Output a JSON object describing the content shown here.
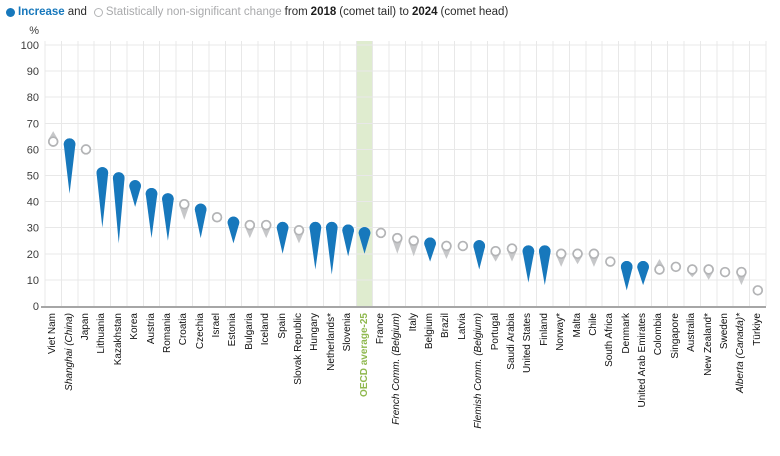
{
  "legend": {
    "increase_label": "Increase",
    "and_text": "and",
    "nonsig_label": "Statistically non-significant change",
    "from_text": "from",
    "year_start": "2018",
    "tail_text": "(comet tail) to",
    "year_end": "2024",
    "head_text": "(comet head)"
  },
  "axis": {
    "unit": "%",
    "ticks": [
      0,
      10,
      20,
      30,
      40,
      50,
      60,
      70,
      80,
      90,
      100
    ]
  },
  "colors": {
    "blue": "#1778bc",
    "gray_fill": "#c6c7c9",
    "gray_stroke": "#b3b4b6",
    "band": "#dfeccf",
    "green_label": "#8fb84e",
    "grid": "#e8e8e8",
    "axis_line": "#a6a6a6",
    "tick_text": "#3c3c3c"
  },
  "chart_data": {
    "type": "comet",
    "title": "Increase and statistically non-significant change from 2018 (comet tail) to 2024 (comet head)",
    "ylabel": "%",
    "ylim": [
      0,
      100
    ],
    "grid": true,
    "legend_position": "top-left",
    "points": [
      {
        "label": "Viet Nam",
        "value_2024": 63,
        "value_2018": 67,
        "significant": false,
        "italic": false,
        "highlight": false
      },
      {
        "label": "Shanghai (China)",
        "value_2024": 62,
        "value_2018": 43,
        "significant": true,
        "italic": true,
        "highlight": false
      },
      {
        "label": "Japan",
        "value_2024": 60,
        "value_2018": 62,
        "significant": false,
        "italic": false,
        "highlight": false
      },
      {
        "label": "Lithuania",
        "value_2024": 51,
        "value_2018": 30,
        "significant": true,
        "italic": false,
        "highlight": false
      },
      {
        "label": "Kazakhstan",
        "value_2024": 49,
        "value_2018": 24,
        "significant": true,
        "italic": false,
        "highlight": false
      },
      {
        "label": "Korea",
        "value_2024": 46,
        "value_2018": 38,
        "significant": true,
        "italic": false,
        "highlight": false
      },
      {
        "label": "Austria",
        "value_2024": 43,
        "value_2018": 26,
        "significant": true,
        "italic": false,
        "highlight": false
      },
      {
        "label": "Romania",
        "value_2024": 41,
        "value_2018": 25,
        "significant": true,
        "italic": false,
        "highlight": false
      },
      {
        "label": "Croatia",
        "value_2024": 39,
        "value_2018": 33,
        "significant": false,
        "italic": false,
        "highlight": false
      },
      {
        "label": "Czechia",
        "value_2024": 37,
        "value_2018": 26,
        "significant": true,
        "italic": false,
        "highlight": false
      },
      {
        "label": "Israel",
        "value_2024": 34,
        "value_2018": 34,
        "significant": false,
        "italic": false,
        "highlight": false
      },
      {
        "label": "Estonia",
        "value_2024": 32,
        "value_2018": 24,
        "significant": true,
        "italic": false,
        "highlight": false
      },
      {
        "label": "Bulgaria",
        "value_2024": 31,
        "value_2018": 26,
        "significant": false,
        "italic": false,
        "highlight": false
      },
      {
        "label": "Iceland",
        "value_2024": 31,
        "value_2018": 26,
        "significant": false,
        "italic": false,
        "highlight": false
      },
      {
        "label": "Spain",
        "value_2024": 30,
        "value_2018": 20,
        "significant": true,
        "italic": false,
        "highlight": false
      },
      {
        "label": "Slovak Republic",
        "value_2024": 29,
        "value_2018": 24,
        "significant": false,
        "italic": false,
        "highlight": false
      },
      {
        "label": "Hungary",
        "value_2024": 30,
        "value_2018": 14,
        "significant": true,
        "italic": false,
        "highlight": false
      },
      {
        "label": "Netherlands*",
        "value_2024": 30,
        "value_2018": 12,
        "significant": true,
        "italic": false,
        "highlight": false
      },
      {
        "label": "Slovenia",
        "value_2024": 29,
        "value_2018": 19,
        "significant": true,
        "italic": false,
        "highlight": false
      },
      {
        "label": "OECD average-25",
        "value_2024": 28,
        "value_2018": 20,
        "significant": true,
        "italic": false,
        "highlight": true
      },
      {
        "label": "France",
        "value_2024": 28,
        "value_2018": 28,
        "significant": false,
        "italic": false,
        "highlight": false
      },
      {
        "label": "French Comm. (Belgium)",
        "value_2024": 26,
        "value_2018": 20,
        "significant": false,
        "italic": true,
        "highlight": false
      },
      {
        "label": "Italy",
        "value_2024": 25,
        "value_2018": 19,
        "significant": false,
        "italic": false,
        "highlight": false
      },
      {
        "label": "Belgium",
        "value_2024": 24,
        "value_2018": 17,
        "significant": true,
        "italic": false,
        "highlight": false
      },
      {
        "label": "Brazil",
        "value_2024": 23,
        "value_2018": 18,
        "significant": false,
        "italic": false,
        "highlight": false
      },
      {
        "label": "Latvia",
        "value_2024": 23,
        "value_2018": 23,
        "significant": false,
        "italic": false,
        "highlight": false
      },
      {
        "label": "Flemish Comm. (Belgium)",
        "value_2024": 23,
        "value_2018": 14,
        "significant": true,
        "italic": true,
        "highlight": false
      },
      {
        "label": "Portugal",
        "value_2024": 21,
        "value_2018": 17,
        "significant": false,
        "italic": false,
        "highlight": false
      },
      {
        "label": "Saudi Arabia",
        "value_2024": 22,
        "value_2018": 17,
        "significant": false,
        "italic": false,
        "highlight": false
      },
      {
        "label": "United States",
        "value_2024": 21,
        "value_2018": 9,
        "significant": true,
        "italic": false,
        "highlight": false
      },
      {
        "label": "Finland",
        "value_2024": 21,
        "value_2018": 8,
        "significant": true,
        "italic": false,
        "highlight": false
      },
      {
        "label": "Norway*",
        "value_2024": 20,
        "value_2018": 15,
        "significant": false,
        "italic": false,
        "highlight": false
      },
      {
        "label": "Malta",
        "value_2024": 20,
        "value_2018": 16,
        "significant": false,
        "italic": false,
        "highlight": false
      },
      {
        "label": "Chile",
        "value_2024": 20,
        "value_2018": 15,
        "significant": false,
        "italic": false,
        "highlight": false
      },
      {
        "label": "South Africa",
        "value_2024": 17,
        "value_2018": 17,
        "significant": false,
        "italic": false,
        "highlight": false
      },
      {
        "label": "Denmark",
        "value_2024": 15,
        "value_2018": 6,
        "significant": true,
        "italic": false,
        "highlight": false
      },
      {
        "label": "United Arab Emirates",
        "value_2024": 15,
        "value_2018": 8,
        "significant": true,
        "italic": false,
        "highlight": false
      },
      {
        "label": "Colombia",
        "value_2024": 14,
        "value_2018": 18,
        "significant": false,
        "italic": false,
        "highlight": false
      },
      {
        "label": "Singapore",
        "value_2024": 15,
        "value_2018": 15,
        "significant": false,
        "italic": false,
        "highlight": false
      },
      {
        "label": "Australia",
        "value_2024": 14,
        "value_2018": 11,
        "significant": false,
        "italic": false,
        "highlight": false
      },
      {
        "label": "New Zealand*",
        "value_2024": 14,
        "value_2018": 10,
        "significant": false,
        "italic": false,
        "highlight": false
      },
      {
        "label": "Sweden",
        "value_2024": 13,
        "value_2018": 11,
        "significant": false,
        "italic": false,
        "highlight": false
      },
      {
        "label": "Alberta (Canada)*",
        "value_2024": 13,
        "value_2018": 8,
        "significant": false,
        "italic": true,
        "highlight": false
      },
      {
        "label": "Türkiye",
        "value_2024": 6,
        "value_2018": 6,
        "significant": false,
        "italic": false,
        "highlight": false
      }
    ]
  }
}
